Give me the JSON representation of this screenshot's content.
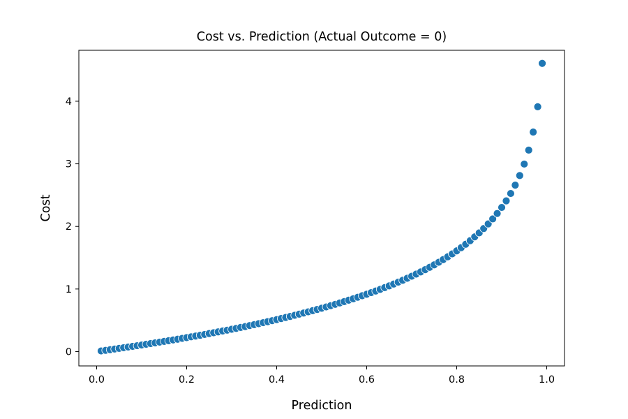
{
  "chart_data": {
    "type": "scatter",
    "title": "Cost vs. Prediction (Actual Outcome = 0)",
    "xlabel": "Prediction",
    "ylabel": "Cost",
    "xlim": [
      -0.0395,
      1.0395
    ],
    "ylim": [
      -0.229,
      4.814
    ],
    "xticks": [
      {
        "value": 0.0,
        "label": "0.0"
      },
      {
        "value": 0.2,
        "label": "0.2"
      },
      {
        "value": 0.4,
        "label": "0.4"
      },
      {
        "value": 0.6,
        "label": "0.6"
      },
      {
        "value": 0.8,
        "label": "0.8"
      },
      {
        "value": 1.0,
        "label": "1.0"
      }
    ],
    "yticks": [
      {
        "value": 0,
        "label": "0"
      },
      {
        "value": 1,
        "label": "1"
      },
      {
        "value": 2,
        "label": "2"
      },
      {
        "value": 3,
        "label": "3"
      },
      {
        "value": 4,
        "label": "4"
      }
    ],
    "grid": false,
    "marker_color": "#1f77b4",
    "marker_edge_color": "#ffffff",
    "series": [
      {
        "x": [
          0.01,
          0.02,
          0.03,
          0.04,
          0.05,
          0.06,
          0.07,
          0.08,
          0.09,
          0.1,
          0.11,
          0.12,
          0.13,
          0.14,
          0.15,
          0.16,
          0.17,
          0.18,
          0.19,
          0.2,
          0.21,
          0.22,
          0.23,
          0.24,
          0.25,
          0.26,
          0.27,
          0.28,
          0.29,
          0.3,
          0.31,
          0.32,
          0.33,
          0.34,
          0.35,
          0.36,
          0.37,
          0.38,
          0.39,
          0.4,
          0.41,
          0.42,
          0.43,
          0.44,
          0.45,
          0.46,
          0.47,
          0.48,
          0.49,
          0.5,
          0.51,
          0.52,
          0.53,
          0.54,
          0.55,
          0.56,
          0.57,
          0.58,
          0.59,
          0.6,
          0.61,
          0.62,
          0.63,
          0.64,
          0.65,
          0.66,
          0.67,
          0.68,
          0.69,
          0.7,
          0.71,
          0.72,
          0.73,
          0.74,
          0.75,
          0.76,
          0.77,
          0.78,
          0.79,
          0.8,
          0.81,
          0.82,
          0.83,
          0.84,
          0.85,
          0.86,
          0.87,
          0.88,
          0.89,
          0.9,
          0.91,
          0.92,
          0.93,
          0.94,
          0.95,
          0.96,
          0.97,
          0.98,
          0.99
        ],
        "y": [
          0.01,
          0.02,
          0.03,
          0.041,
          0.051,
          0.062,
          0.073,
          0.083,
          0.094,
          0.105,
          0.117,
          0.128,
          0.139,
          0.151,
          0.163,
          0.174,
          0.186,
          0.198,
          0.211,
          0.223,
          0.236,
          0.248,
          0.261,
          0.274,
          0.288,
          0.301,
          0.315,
          0.329,
          0.342,
          0.357,
          0.371,
          0.386,
          0.4,
          0.416,
          0.431,
          0.446,
          0.462,
          0.478,
          0.494,
          0.511,
          0.528,
          0.545,
          0.562,
          0.58,
          0.598,
          0.616,
          0.635,
          0.654,
          0.673,
          0.693,
          0.713,
          0.734,
          0.755,
          0.777,
          0.799,
          0.821,
          0.844,
          0.868,
          0.892,
          0.916,
          0.942,
          0.968,
          0.994,
          1.022,
          1.05,
          1.079,
          1.109,
          1.139,
          1.171,
          1.204,
          1.238,
          1.273,
          1.309,
          1.347,
          1.386,
          1.427,
          1.47,
          1.514,
          1.561,
          1.609,
          1.661,
          1.715,
          1.772,
          1.833,
          1.897,
          1.966,
          2.04,
          2.12,
          2.207,
          2.303,
          2.408,
          2.526,
          2.659,
          2.813,
          2.996,
          3.219,
          3.507,
          3.912,
          4.605
        ]
      }
    ]
  }
}
